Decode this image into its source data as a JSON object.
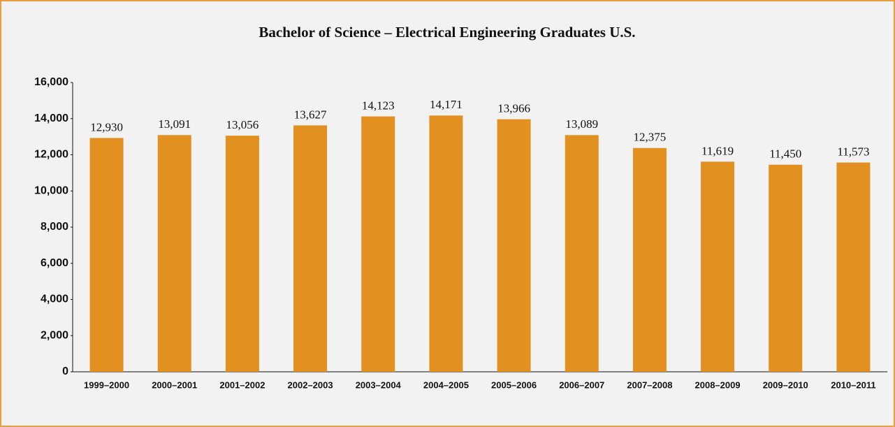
{
  "chart_data": {
    "type": "bar",
    "title": "Bachelor of Science – Electrical Engineering Graduates U.S.",
    "categories": [
      "1999–2000",
      "2000–2001",
      "2001–2002",
      "2002–2003",
      "2003–2004",
      "2004–2005",
      "2005–2006",
      "2006–2007",
      "2007–2008",
      "2008–2009",
      "2009–2010",
      "2010–2011"
    ],
    "values": [
      12930,
      13091,
      13056,
      13627,
      14123,
      14171,
      13966,
      13089,
      12375,
      11619,
      11450,
      11573
    ],
    "value_labels": [
      "12,930",
      "13,091",
      "13,056",
      "13,627",
      "14,123",
      "14,171",
      "13,966",
      "13,089",
      "12,375",
      "11,619",
      "11,450",
      "11,573"
    ],
    "color": "#e2901f",
    "ylim": [
      0,
      16000
    ],
    "yticks": [
      0,
      {
        "value": 2000,
        "label": "2,000"
      },
      {
        "value": 4000,
        "label": "4,000"
      },
      {
        "value": 6000,
        "label": "6,000"
      },
      {
        "value": 8000,
        "label": "8,000"
      },
      {
        "value": 10000,
        "label": "10,000"
      },
      {
        "value": 12000,
        "label": "12,000"
      },
      {
        "value": 14000,
        "label": "14,000"
      },
      {
        "value": 16000,
        "label": "16,000"
      }
    ],
    "grid": false
  }
}
